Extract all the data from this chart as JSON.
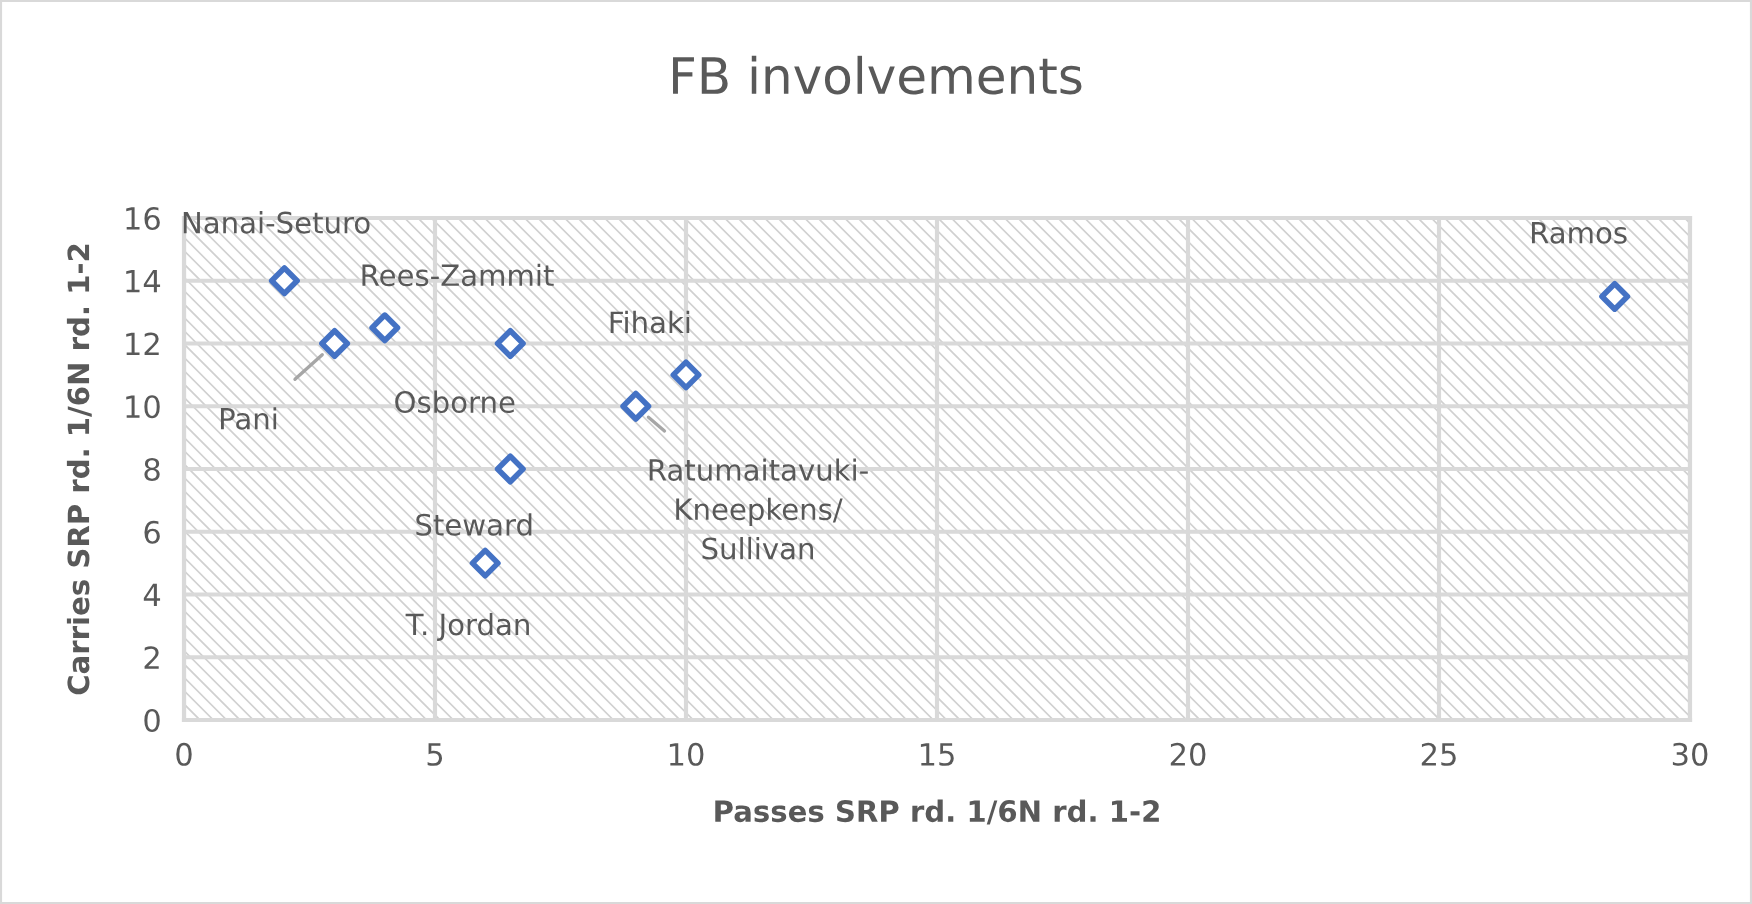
{
  "chart_data": {
    "type": "scatter",
    "title": "FB involvements",
    "xlabel": "Passes SRP rd. 1/6N rd. 1-2",
    "ylabel": "Carries SRP rd. 1/6N rd. 1-2",
    "series": [
      {
        "color": "#4472c4",
        "x": [
          2,
          3,
          4,
          6.5,
          10,
          9,
          6.5,
          6,
          28.5
        ],
        "values": [
          14,
          12,
          12.5,
          12,
          11,
          10,
          8,
          5,
          13.5
        ]
      }
    ],
    "annotations": [
      {
        "text": "Nanai-Seturo",
        "x": 2,
        "y": 14
      },
      {
        "text": "Pani",
        "x": 3,
        "y": 12
      },
      {
        "text": "Rees-Zammit",
        "x": 4,
        "y": 12.5
      },
      {
        "text": "Osborne",
        "x": 6.5,
        "y": 12
      },
      {
        "text": "Fihaki",
        "x": 10,
        "y": 11
      },
      {
        "text": "Ratumaitavuki-\nKneepkens/\nSullivan",
        "x": 9,
        "y": 10
      },
      {
        "text": "Steward",
        "x": 6.5,
        "y": 8
      },
      {
        "text": "T. Jordan",
        "x": 6,
        "y": 5
      },
      {
        "text": "Ramos",
        "x": 28.5,
        "y": 13.5
      }
    ],
    "xlim": [
      0,
      30
    ],
    "xticks": [
      0,
      5,
      10,
      15,
      20,
      25,
      30
    ],
    "ylim": [
      0,
      16
    ],
    "yticks": [
      0,
      2,
      4,
      6,
      8,
      10,
      12,
      14,
      16
    ],
    "grid": true,
    "marker": "diamond",
    "legend": false
  }
}
